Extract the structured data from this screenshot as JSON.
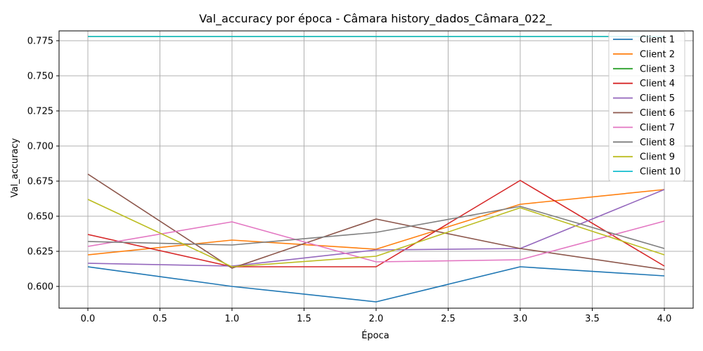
{
  "chart_data": {
    "type": "line",
    "title": "Val_accuracy por época - Câmara history_dados_Câmara_022_",
    "xlabel": "Época",
    "ylabel": "Val_accuracy",
    "x": [
      0,
      1,
      2,
      3,
      4
    ],
    "xlim": [
      -0.2,
      4.2
    ],
    "ylim": [
      0.5845,
      0.782
    ],
    "xticks": [
      0.0,
      0.5,
      1.0,
      1.5,
      2.0,
      2.5,
      3.0,
      3.5,
      4.0
    ],
    "xtick_labels": [
      "0.0",
      "0.5",
      "1.0",
      "1.5",
      "2.0",
      "2.5",
      "3.0",
      "3.5",
      "4.0"
    ],
    "yticks": [
      0.6,
      0.625,
      0.65,
      0.675,
      0.7,
      0.725,
      0.75,
      0.775
    ],
    "ytick_labels": [
      "0.600",
      "0.625",
      "0.650",
      "0.675",
      "0.700",
      "0.725",
      "0.750",
      "0.775"
    ],
    "grid": true,
    "legend_position": "top-right",
    "series": [
      {
        "name": "Client 1",
        "color": "#1f77b4",
        "values": [
          0.614,
          0.6,
          0.589,
          0.614,
          0.6075
        ]
      },
      {
        "name": "Client 2",
        "color": "#ff7f0e",
        "values": [
          0.6225,
          0.633,
          0.6265,
          0.6585,
          0.669
        ]
      },
      {
        "name": "Client 3",
        "color": "#2ca02c",
        "values": [
          0.778,
          0.778,
          0.778,
          0.778,
          0.778
        ]
      },
      {
        "name": "Client 4",
        "color": "#d62728",
        "values": [
          0.637,
          0.614,
          0.614,
          0.6755,
          0.6145
        ]
      },
      {
        "name": "Client 5",
        "color": "#9467bd",
        "values": [
          0.6165,
          0.6145,
          0.626,
          0.627,
          0.669
        ]
      },
      {
        "name": "Client 6",
        "color": "#8c564b",
        "values": [
          0.68,
          0.613,
          0.648,
          0.627,
          0.612
        ]
      },
      {
        "name": "Client 7",
        "color": "#e377c2",
        "values": [
          0.6285,
          0.646,
          0.6175,
          0.619,
          0.6465
        ]
      },
      {
        "name": "Client 8",
        "color": "#7f7f7f",
        "values": [
          0.632,
          0.6295,
          0.6385,
          0.657,
          0.627
        ]
      },
      {
        "name": "Client 9",
        "color": "#bcbd22",
        "values": [
          0.662,
          0.614,
          0.6215,
          0.656,
          0.6225
        ]
      },
      {
        "name": "Client 10",
        "color": "#17becf",
        "values": [
          0.778,
          0.778,
          0.778,
          0.778,
          0.778
        ]
      }
    ]
  }
}
